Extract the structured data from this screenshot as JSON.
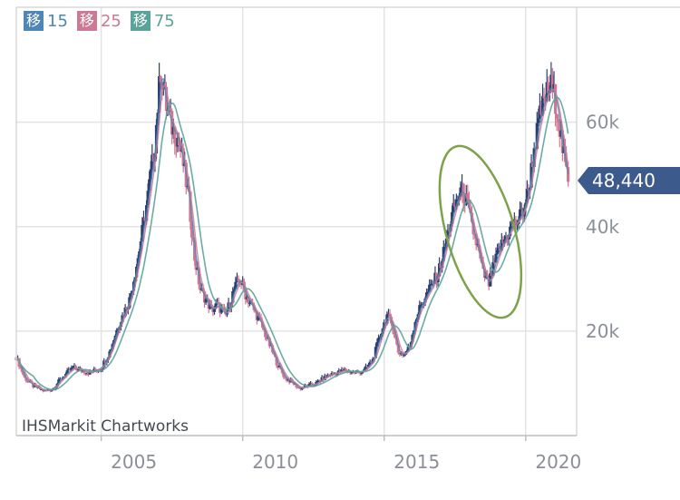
{
  "legend": [
    {
      "label": "移",
      "value": "15",
      "color": "#4f86b8"
    },
    {
      "label": "移",
      "value": "25",
      "color": "#cc7a92"
    },
    {
      "label": "移",
      "value": "75",
      "color": "#5aa39a"
    }
  ],
  "price_badge": {
    "text": "48,440",
    "color": "#3d5a8c"
  },
  "watermark": "IHSMarkit Chartworks",
  "chart_data": {
    "type": "line",
    "title": "",
    "xlabel": "",
    "ylabel": "",
    "x_ticks": [
      "2005",
      "2010",
      "2015",
      "2020"
    ],
    "y_ticks": [
      "20k",
      "40k",
      "60k"
    ],
    "xlim": [
      2002.0,
      2021.8
    ],
    "ylim": [
      0,
      82000
    ],
    "grid": true,
    "y_axis_side": "right",
    "last_price": 48440,
    "annotation": {
      "shape": "ellipse",
      "color": "#7da24a",
      "x_range": [
        2017.2,
        2019.6
      ],
      "y_range": [
        22000,
        56000
      ]
    },
    "series": [
      {
        "color": "#2b3f6e",
        "x": [
          2002.0,
          2002.3,
          2002.6,
          2003.0,
          2003.3,
          2003.6,
          2004.0,
          2004.3,
          2004.6,
          2005.0,
          2005.3,
          2005.6,
          2006.0,
          2006.3,
          2006.6,
          2006.9,
          2007.1,
          2007.3,
          2007.5,
          2007.7,
          2007.9,
          2008.1,
          2008.3,
          2008.5,
          2008.7,
          2008.9,
          2009.1,
          2009.4,
          2009.7,
          2009.9,
          2010.1,
          2010.3,
          2010.6,
          2010.9,
          2011.2,
          2011.5,
          2011.8,
          2012.0,
          2012.3,
          2012.6,
          2013.0,
          2013.3,
          2013.6,
          2014.0,
          2014.3,
          2014.6,
          2014.9,
          2015.1,
          2015.3,
          2015.5,
          2015.7,
          2015.9,
          2016.1,
          2016.3,
          2016.5,
          2016.7,
          2016.9,
          2017.1,
          2017.3,
          2017.5,
          2017.7,
          2017.9,
          2018.1,
          2018.3,
          2018.5,
          2018.7,
          2018.9,
          2019.1,
          2019.3,
          2019.5,
          2019.7,
          2019.9,
          2020.1,
          2020.3,
          2020.5,
          2020.7,
          2020.9,
          2021.1,
          2021.3,
          2021.5
        ],
        "values": [
          15000,
          11000,
          9500,
          8500,
          9000,
          11000,
          13000,
          12500,
          12000,
          13000,
          16000,
          21000,
          26000,
          34000,
          44000,
          56000,
          70000,
          63000,
          59000,
          57000,
          52000,
          45000,
          34000,
          28000,
          26000,
          24000,
          25000,
          23000,
          28000,
          30000,
          27000,
          25000,
          22000,
          18000,
          14000,
          11000,
          10000,
          9000,
          9500,
          10000,
          11500,
          12000,
          12500,
          12000,
          12500,
          14500,
          20000,
          23000,
          21000,
          16000,
          15500,
          17000,
          22000,
          25000,
          27000,
          29000,
          31000,
          35000,
          40000,
          44000,
          47000,
          45000,
          40000,
          36000,
          31000,
          29000,
          33000,
          36000,
          38000,
          40000,
          41000,
          43000,
          47000,
          55000,
          61000,
          65000,
          67000,
          63000,
          55000,
          48440
        ]
      }
    ]
  }
}
